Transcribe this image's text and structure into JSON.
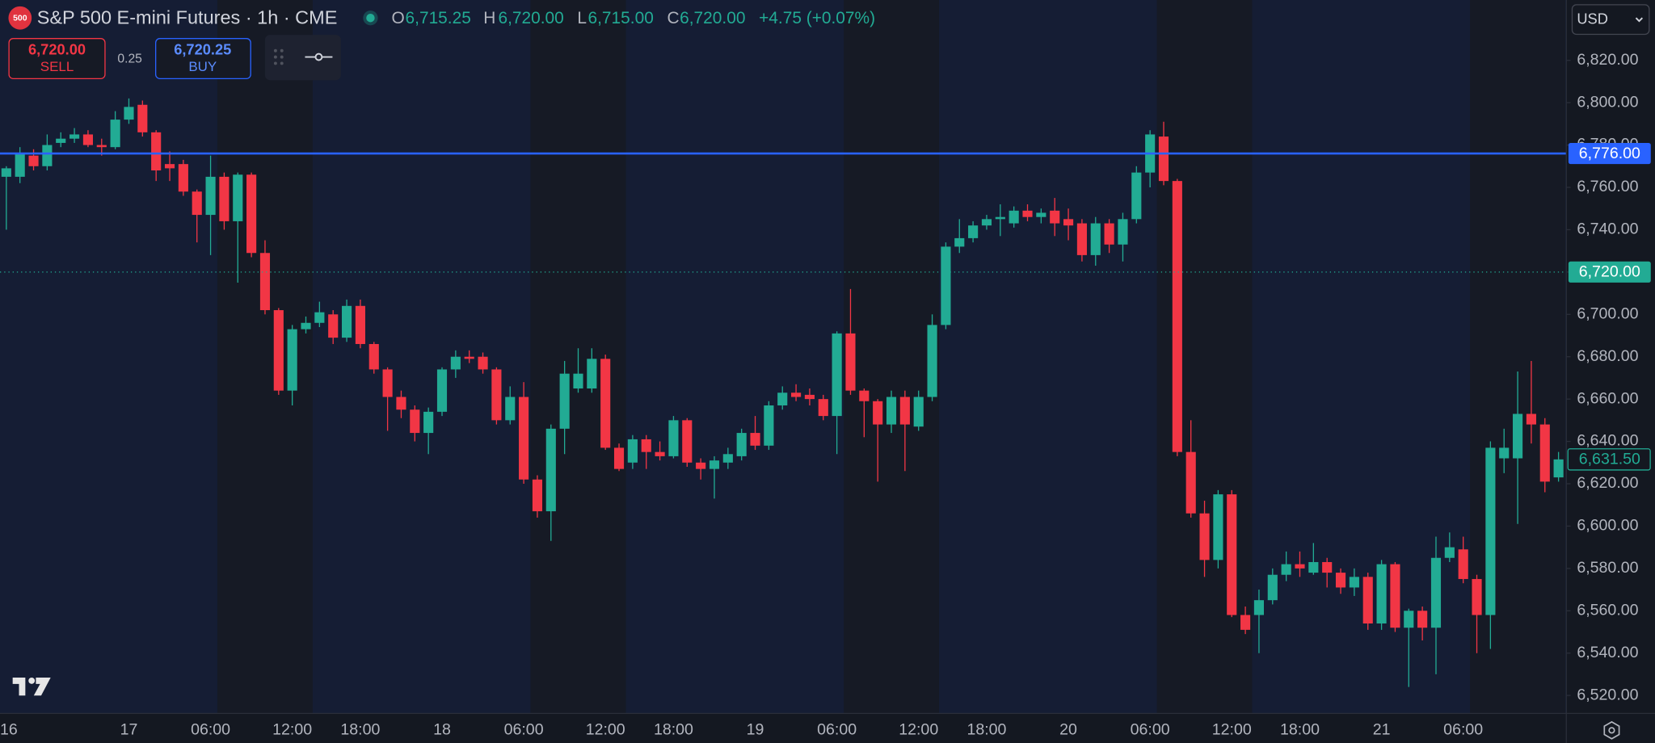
{
  "header": {
    "badge": "500",
    "title": "S&P 500 E-mini Futures · 1h · CME",
    "ohlc": [
      {
        "key": "O",
        "value": "6,715.25"
      },
      {
        "key": "H",
        "value": "6,720.00"
      },
      {
        "key": "L",
        "value": "6,715.00"
      },
      {
        "key": "C",
        "value": "6,720.00"
      }
    ],
    "change": "+4.75 (+0.07%)"
  },
  "trade": {
    "sell_price": "6,720.00",
    "sell": "SELL",
    "spread": "0.25",
    "buy_price": "6,720.25",
    "buy": "BUY"
  },
  "currency": "USD",
  "chart_data": {
    "type": "candlestick",
    "categories": [
      "16",
      null,
      null,
      null,
      null,
      null,
      null,
      null,
      null,
      "17",
      null,
      null,
      null,
      null,
      null,
      "06:00",
      null,
      null,
      null,
      null,
      null,
      "12:00",
      null,
      null,
      null,
      null,
      "18:00",
      null,
      null,
      null,
      null,
      null,
      "18",
      null,
      null,
      null,
      null,
      null,
      "06:00",
      null,
      null,
      null,
      null,
      null,
      "12:00",
      null,
      null,
      null,
      null,
      "18:00",
      null,
      null,
      null,
      null,
      null,
      "19",
      null,
      null,
      null,
      null,
      null,
      "06:00",
      null,
      null,
      null,
      null,
      null,
      "12:00",
      null,
      null,
      null,
      null,
      "18:00",
      null,
      null,
      null,
      null,
      null,
      "20",
      null,
      null,
      null,
      null,
      null,
      "06:00",
      null,
      null,
      null,
      null,
      null,
      "12:00",
      null,
      null,
      null,
      null,
      "18:00",
      null,
      null,
      null,
      null,
      null,
      "21",
      null,
      null,
      null,
      null,
      null,
      "06:00",
      null,
      null,
      null,
      null,
      null,
      null,
      null
    ],
    "open": [
      6765,
      6765,
      6775,
      6770,
      6781,
      6783,
      6785,
      6780,
      6779,
      6792,
      6799,
      6786,
      6771,
      6771,
      6758,
      6747,
      6765,
      6744,
      6766,
      6729,
      6702,
      6664,
      6693,
      6696,
      6700,
      6689,
      6704,
      6686,
      6674,
      6661,
      6655,
      6644,
      6654,
      6674,
      6680,
      6680,
      6674,
      6650,
      6661,
      6622,
      6607,
      6646,
      6665,
      6665,
      6679,
      6637,
      6630,
      6641,
      6635,
      6633,
      6650,
      6630,
      6627,
      6630,
      6633,
      6644,
      6638,
      6657,
      6663,
      6662,
      6660,
      6652,
      6691,
      6664,
      6659,
      6648,
      6661,
      6647,
      6661,
      6695,
      6732,
      6736,
      6742,
      6745,
      6743,
      6749,
      6746,
      6749,
      6745,
      6743,
      6728,
      6743,
      6733,
      6745,
      6767,
      6784,
      6763,
      6635,
      6606,
      6584,
      6615,
      6558,
      6558,
      6565,
      6577,
      6582,
      6578,
      6583,
      6578,
      6571,
      6576,
      6554,
      6582,
      6552,
      6560,
      6552,
      6585,
      6589,
      6575,
      6558,
      6632,
      6632,
      6653,
      6648,
      6623
    ],
    "high": [
      6770,
      6779,
      6778,
      6785,
      6786,
      6788,
      6787,
      6783,
      6796,
      6802,
      6801,
      6787,
      6777,
      6773,
      6759,
      6775,
      6767,
      6767,
      6767,
      6735,
      6703,
      6695,
      6699,
      6706,
      6702,
      6707,
      6707,
      6687,
      6675,
      6664,
      6657,
      6656,
      6675,
      6683,
      6683,
      6682,
      6675,
      6666,
      6668,
      6624,
      6648,
      6678,
      6684,
      6684,
      6681,
      6639,
      6643,
      6643,
      6640,
      6652,
      6651,
      6632,
      6633,
      6637,
      6646,
      6652,
      6659,
      6666,
      6667,
      6665,
      6662,
      6692,
      6712,
      6665,
      6660,
      6664,
      6664,
      6664,
      6700,
      6734,
      6745,
      6744,
      6747,
      6752,
      6751,
      6752,
      6750,
      6755,
      6750,
      6745,
      6746,
      6745,
      6748,
      6770,
      6787,
      6791,
      6764,
      6650,
      6612,
      6617,
      6617,
      6562,
      6570,
      6580,
      6588,
      6588,
      6592,
      6585,
      6580,
      6580,
      6578,
      6584,
      6583,
      6561,
      6562,
      6595,
      6597,
      6595,
      6577,
      6640,
      6646,
      6673,
      6678,
      6651,
      6635
    ],
    "low": [
      6740,
      6762,
      6768,
      6768,
      6779,
      6781,
      6779,
      6775,
      6778,
      6790,
      6784,
      6763,
      6763,
      6756,
      6734,
      6728,
      6740,
      6715,
      6727,
      6700,
      6662,
      6657,
      6691,
      6694,
      6686,
      6687,
      6684,
      6672,
      6645,
      6651,
      6640,
      6634,
      6652,
      6670,
      6677,
      6672,
      6648,
      6648,
      6620,
      6604,
      6593,
      6634,
      6663,
      6663,
      6636,
      6626,
      6627,
      6627,
      6631,
      6632,
      6628,
      6622,
      6613,
      6627,
      6631,
      6636,
      6636,
      6655,
      6659,
      6657,
      6650,
      6634,
      6662,
      6642,
      6621,
      6644,
      6626,
      6645,
      6659,
      6693,
      6729,
      6734,
      6740,
      6737,
      6741,
      6744,
      6743,
      6737,
      6735,
      6725,
      6723,
      6729,
      6725,
      6743,
      6760,
      6761,
      6633,
      6604,
      6576,
      6580,
      6557,
      6549,
      6540,
      6563,
      6574,
      6576,
      6577,
      6571,
      6568,
      6567,
      6551,
      6551,
      6550,
      6524,
      6546,
      6530,
      6583,
      6573,
      6540,
      6542,
      6625,
      6601,
      6639,
      6616,
      6621
    ],
    "close": [
      6769,
      6776,
      6770,
      6780,
      6783,
      6785,
      6780,
      6779,
      6792,
      6798,
      6786,
      6768,
      6769,
      6758,
      6747,
      6765,
      6744,
      6766,
      6729,
      6702,
      6664,
      6693,
      6696,
      6701,
      6689,
      6704,
      6686,
      6674,
      6661,
      6655,
      6644,
      6654,
      6674,
      6680,
      6679,
      6674,
      6650,
      6661,
      6622,
      6607,
      6646,
      6672,
      6672,
      6679,
      6637,
      6627,
      6641,
      6635,
      6633,
      6650,
      6630,
      6627,
      6631,
      6634,
      6644,
      6638,
      6657,
      6663,
      6661,
      6660,
      6652,
      6691,
      6664,
      6659,
      6648,
      6661,
      6648,
      6661,
      6695,
      6732,
      6736,
      6742,
      6745,
      6746,
      6749,
      6746,
      6748,
      6743,
      6742,
      6728,
      6743,
      6733,
      6745,
      6767,
      6785,
      6763,
      6635,
      6606,
      6584,
      6615,
      6558,
      6551,
      6565,
      6577,
      6582,
      6580,
      6583,
      6578,
      6571,
      6576,
      6554,
      6582,
      6552,
      6560,
      6552,
      6585,
      6590,
      6575,
      6558,
      6637,
      6637,
      6653,
      6648,
      6621,
      6631.5
    ],
    "up_color": "#22ab94",
    "down_color": "#f23645",
    "ylim": [
      6511.5,
      6848.5
    ],
    "yticks": [
      {
        "value": 6520,
        "label": "6,520.00"
      },
      {
        "value": 6540,
        "label": "6,540.00"
      },
      {
        "value": 6560,
        "label": "6,560.00"
      },
      {
        "value": 6580,
        "label": "6,580.00"
      },
      {
        "value": 6600,
        "label": "6,600.00"
      },
      {
        "value": 6620,
        "label": "6,620.00"
      },
      {
        "value": 6640,
        "label": "6,640.00"
      },
      {
        "value": 6660,
        "label": "6,660.00"
      },
      {
        "value": 6680,
        "label": "6,680.00"
      },
      {
        "value": 6700,
        "label": "6,700.00"
      },
      {
        "value": 6720,
        "label": "6,720.00"
      },
      {
        "value": 6740,
        "label": "6,740.00"
      },
      {
        "value": 6760,
        "label": "6,760.00"
      },
      {
        "value": 6780,
        "label": "6,780.00"
      },
      {
        "value": 6800,
        "label": "6,800.00"
      },
      {
        "value": 6820,
        "label": "6,820.00"
      }
    ],
    "grid": false,
    "price_lines": [
      {
        "value": 6776,
        "label": "6,776.00",
        "color": "#2962ff",
        "style": "solid"
      },
      {
        "value": 6720,
        "label": "6,720.00",
        "color": "#22ab94",
        "style": "dotted"
      }
    ],
    "last_price": {
      "value": 6631.5,
      "label": "6,631.50",
      "color": "#22ab94"
    }
  }
}
